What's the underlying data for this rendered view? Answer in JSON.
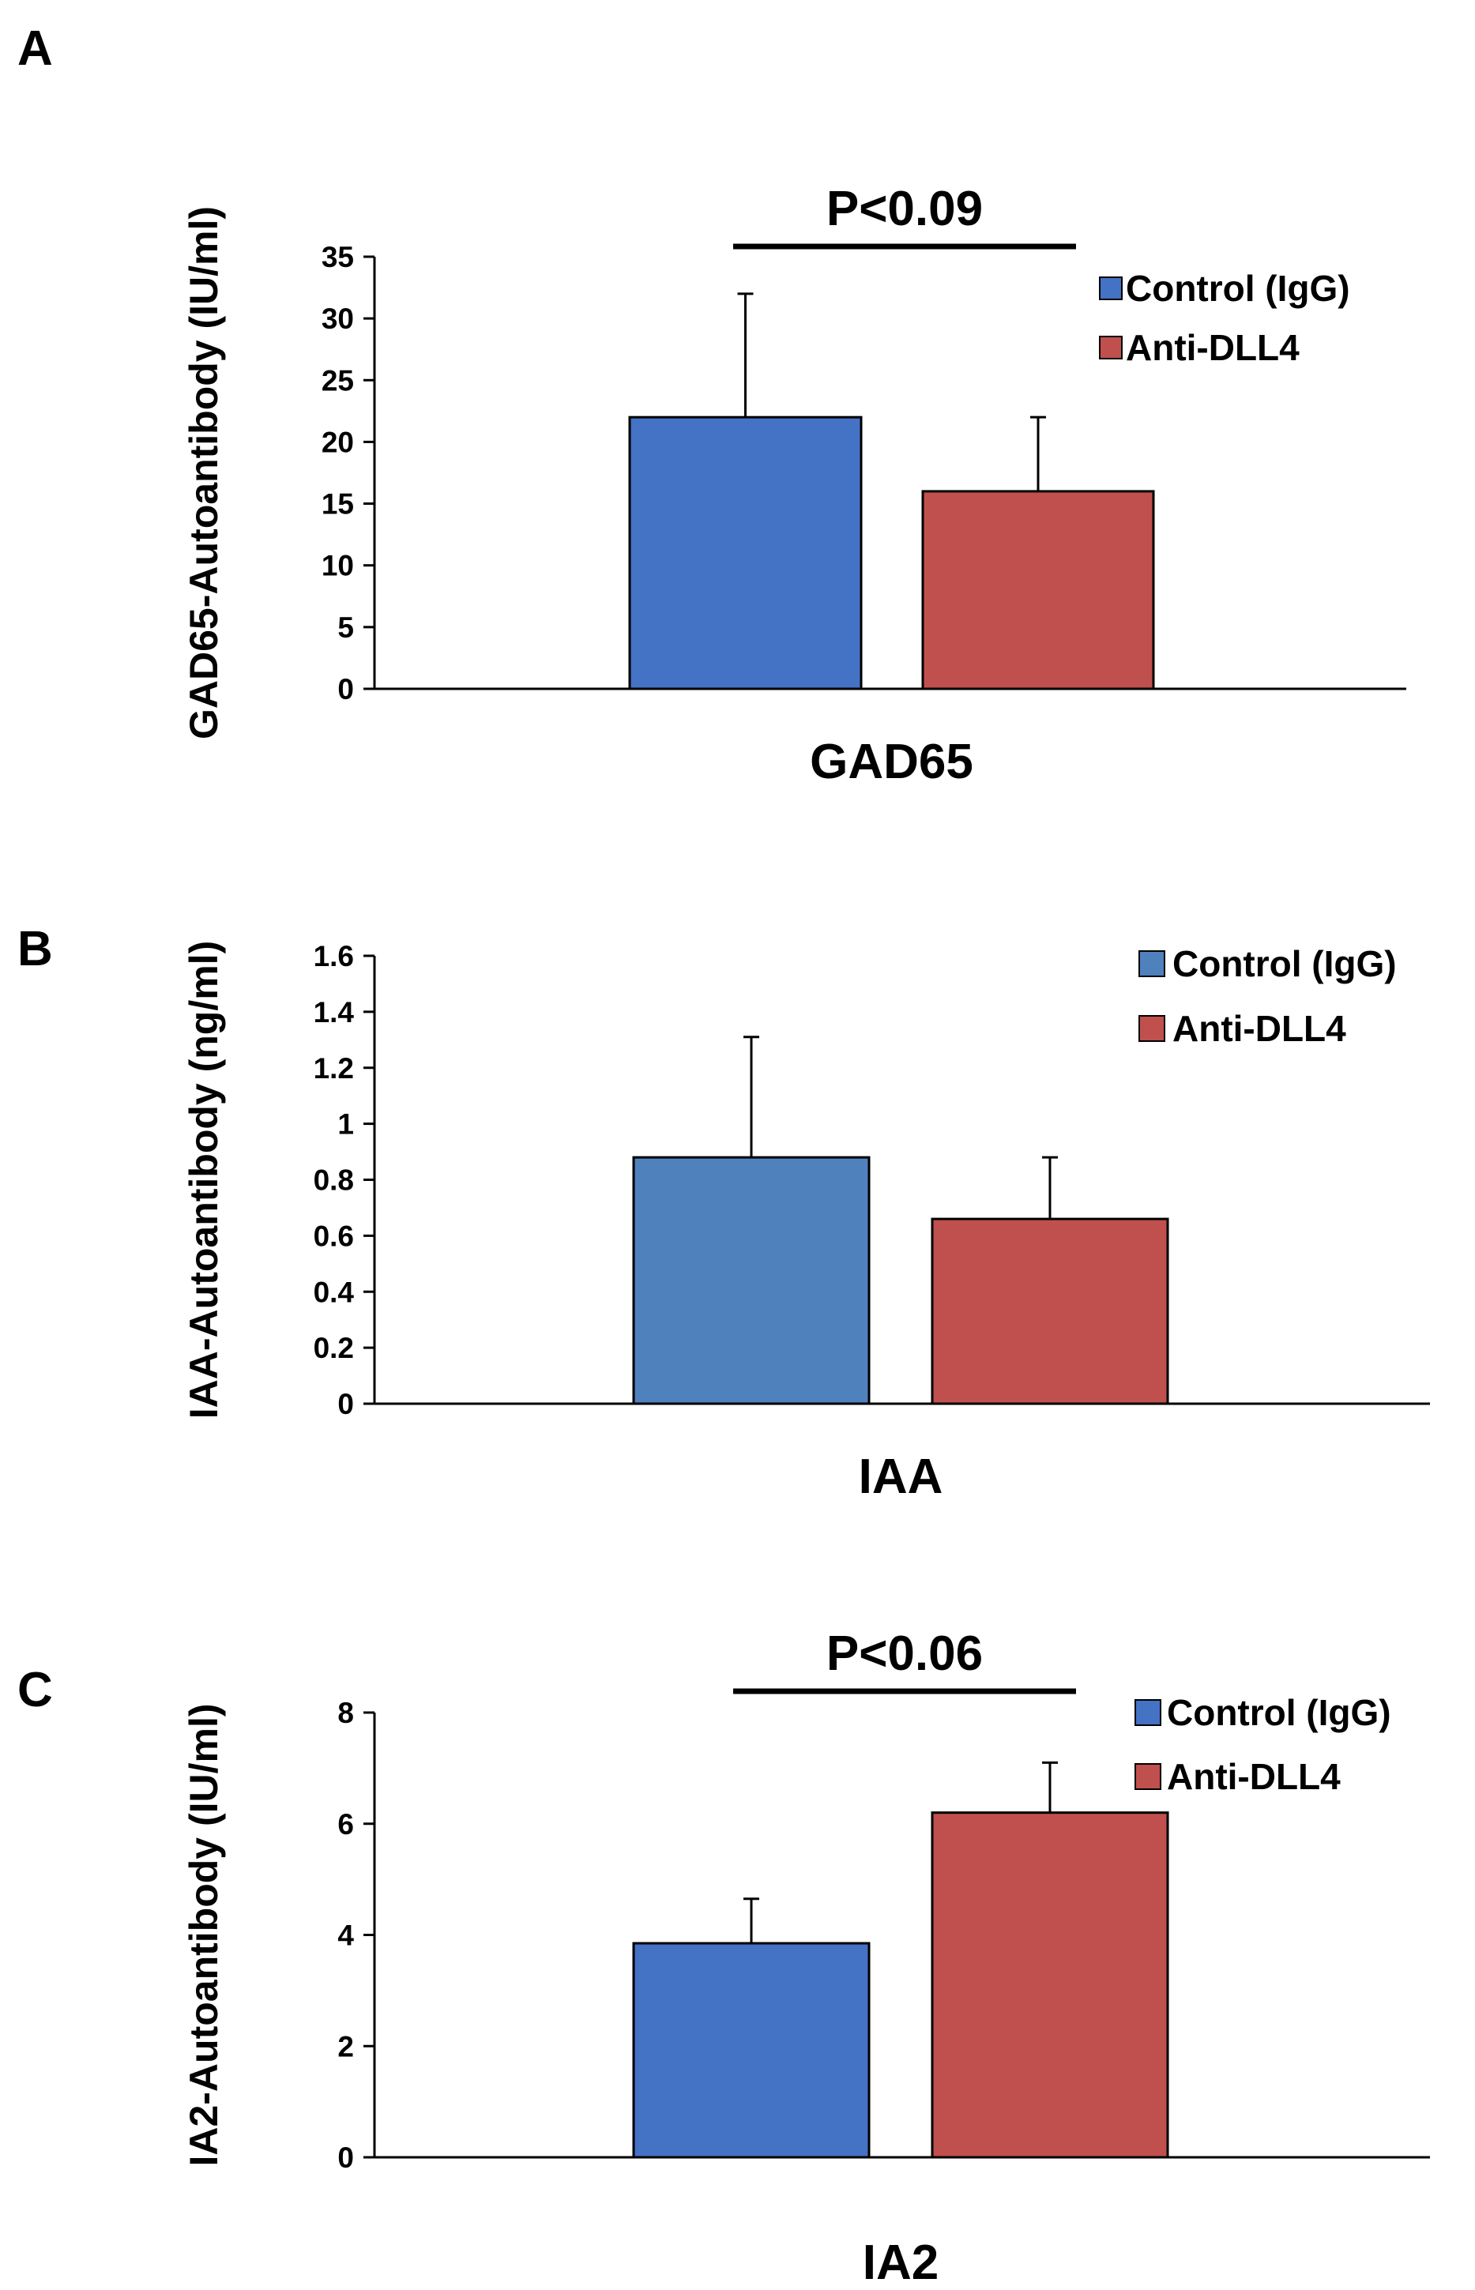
{
  "chart_data": [
    {
      "type": "bar",
      "panel": "A",
      "title": "",
      "categories": [
        "GAD65"
      ],
      "series": [
        {
          "name": "Control (IgG)",
          "color": "#4472c4",
          "values": [
            22
          ],
          "errors": [
            10
          ]
        },
        {
          "name": "Anti-DLL4",
          "color": "#c0504d",
          "values": [
            16
          ],
          "errors": [
            6
          ]
        }
      ],
      "xlabel": "GAD65",
      "ylabel": "GAD65-Autoantibody (IU/ml)",
      "ylim": [
        0,
        35
      ],
      "yticks": [
        "0",
        "5",
        "10",
        "15",
        "20",
        "25",
        "30",
        "35"
      ],
      "significance": "P<0.09",
      "legend_position": "top-right",
      "grid": false
    },
    {
      "type": "bar",
      "panel": "B",
      "title": "",
      "categories": [
        "IAA"
      ],
      "series": [
        {
          "name": "Control (IgG)",
          "color": "#4f81bd",
          "values": [
            0.88
          ],
          "errors": [
            0.43
          ]
        },
        {
          "name": "Anti-DLL4",
          "color": "#c0504d",
          "values": [
            0.66
          ],
          "errors": [
            0.22
          ]
        }
      ],
      "xlabel": "IAA",
      "ylabel": "IAA-Autoantibody (ng/ml)",
      "ylim": [
        0,
        1.6
      ],
      "yticks": [
        "0",
        "0.2",
        "0.4",
        "0.6",
        "0.8",
        "1",
        "1.2",
        "1.4",
        "1.6"
      ],
      "significance": "",
      "legend_position": "top-right",
      "grid": false
    },
    {
      "type": "bar",
      "panel": "C",
      "title": "",
      "categories": [
        "IA2"
      ],
      "series": [
        {
          "name": "Control (IgG)",
          "color": "#4472c4",
          "values": [
            3.85
          ],
          "errors": [
            0.8
          ]
        },
        {
          "name": "Anti-DLL4",
          "color": "#c0504d",
          "values": [
            6.2
          ],
          "errors": [
            0.9
          ]
        }
      ],
      "xlabel": "IA2",
      "ylabel": "IA2-Autoantibody (IU/ml)",
      "ylim": [
        0,
        8
      ],
      "yticks": [
        "0",
        "2",
        "4",
        "6",
        "8"
      ],
      "significance": "P<0.06",
      "legend_position": "top-right",
      "grid": false
    }
  ]
}
